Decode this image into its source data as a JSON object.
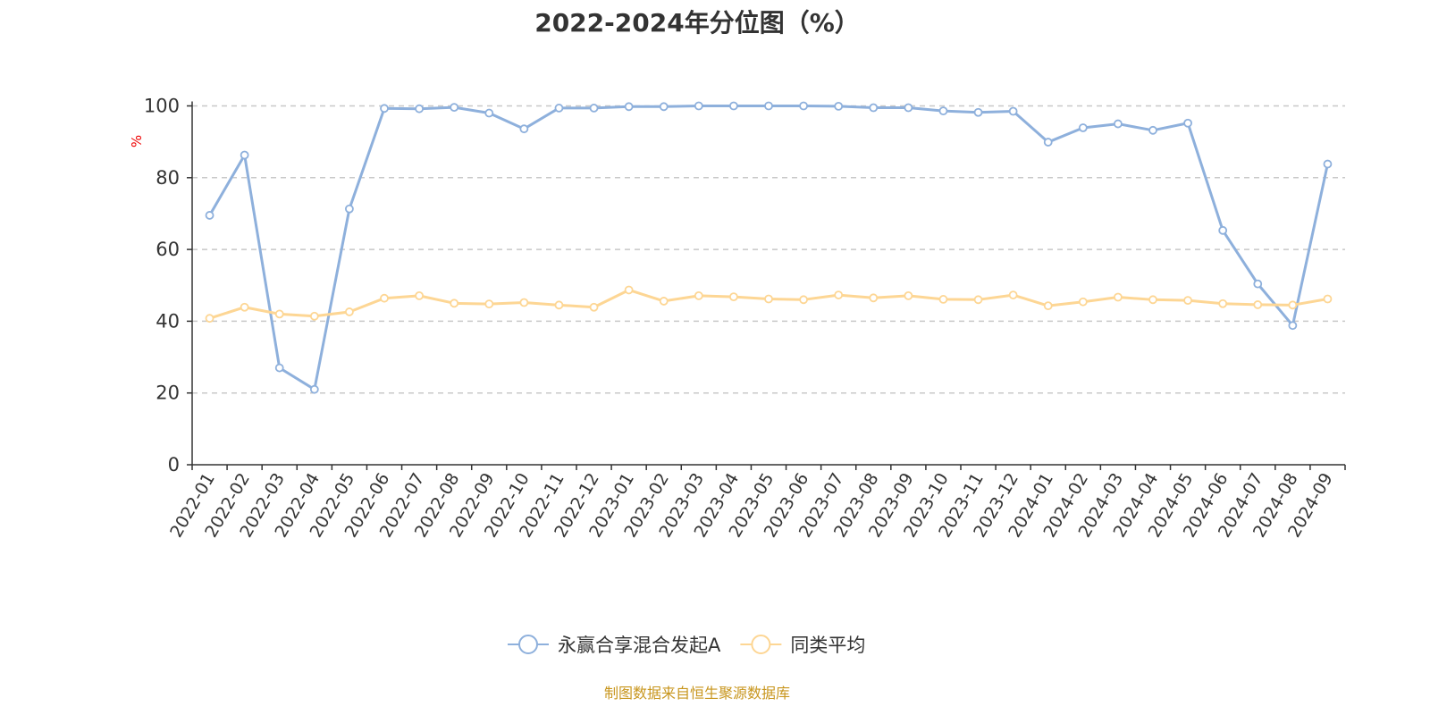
{
  "chart_data": {
    "type": "line",
    "title": "2022-2024年分位图（%）",
    "ylabel": "%",
    "xlabel": "",
    "ylim": [
      0,
      100
    ],
    "yticks": [
      0,
      20,
      40,
      60,
      80,
      100
    ],
    "grid": true,
    "legend_position": "bottom",
    "categories": [
      "2022-01",
      "2022-02",
      "2022-03",
      "2022-04",
      "2022-05",
      "2022-06",
      "2022-07",
      "2022-08",
      "2022-09",
      "2022-10",
      "2022-11",
      "2022-12",
      "2023-01",
      "2023-02",
      "2023-03",
      "2023-04",
      "2023-05",
      "2023-06",
      "2023-07",
      "2023-08",
      "2023-09",
      "2023-10",
      "2023-11",
      "2023-12",
      "2024-01",
      "2024-02",
      "2024-03",
      "2024-04",
      "2024-05",
      "2024-06",
      "2024-07",
      "2024-08",
      "2024-09"
    ],
    "series": [
      {
        "name": "永赢合享混合发起A",
        "color": "#8eb0dc",
        "values": [
          69.5,
          86.3,
          27,
          21,
          71.3,
          99.3,
          99.2,
          99.6,
          98,
          93.6,
          99.4,
          99.4,
          99.8,
          99.8,
          100,
          100,
          100,
          100,
          99.9,
          99.5,
          99.5,
          98.6,
          98.2,
          98.5,
          89.9,
          93.9,
          95,
          93.2,
          95.2,
          65.3,
          50.4,
          38.8,
          83.8
        ]
      },
      {
        "name": "同类平均",
        "color": "#fdd694",
        "values": [
          40.8,
          43.9,
          42,
          41.4,
          42.6,
          46.4,
          47.1,
          45,
          44.8,
          45.2,
          44.5,
          43.9,
          48.7,
          45.6,
          47.1,
          46.8,
          46.2,
          46,
          47.3,
          46.5,
          47.1,
          46.1,
          46,
          47.3,
          44.3,
          45.4,
          46.7,
          46,
          45.8,
          44.9,
          44.6,
          44.5,
          46.2
        ]
      }
    ]
  },
  "source": "制图数据来自恒生聚源数据库"
}
